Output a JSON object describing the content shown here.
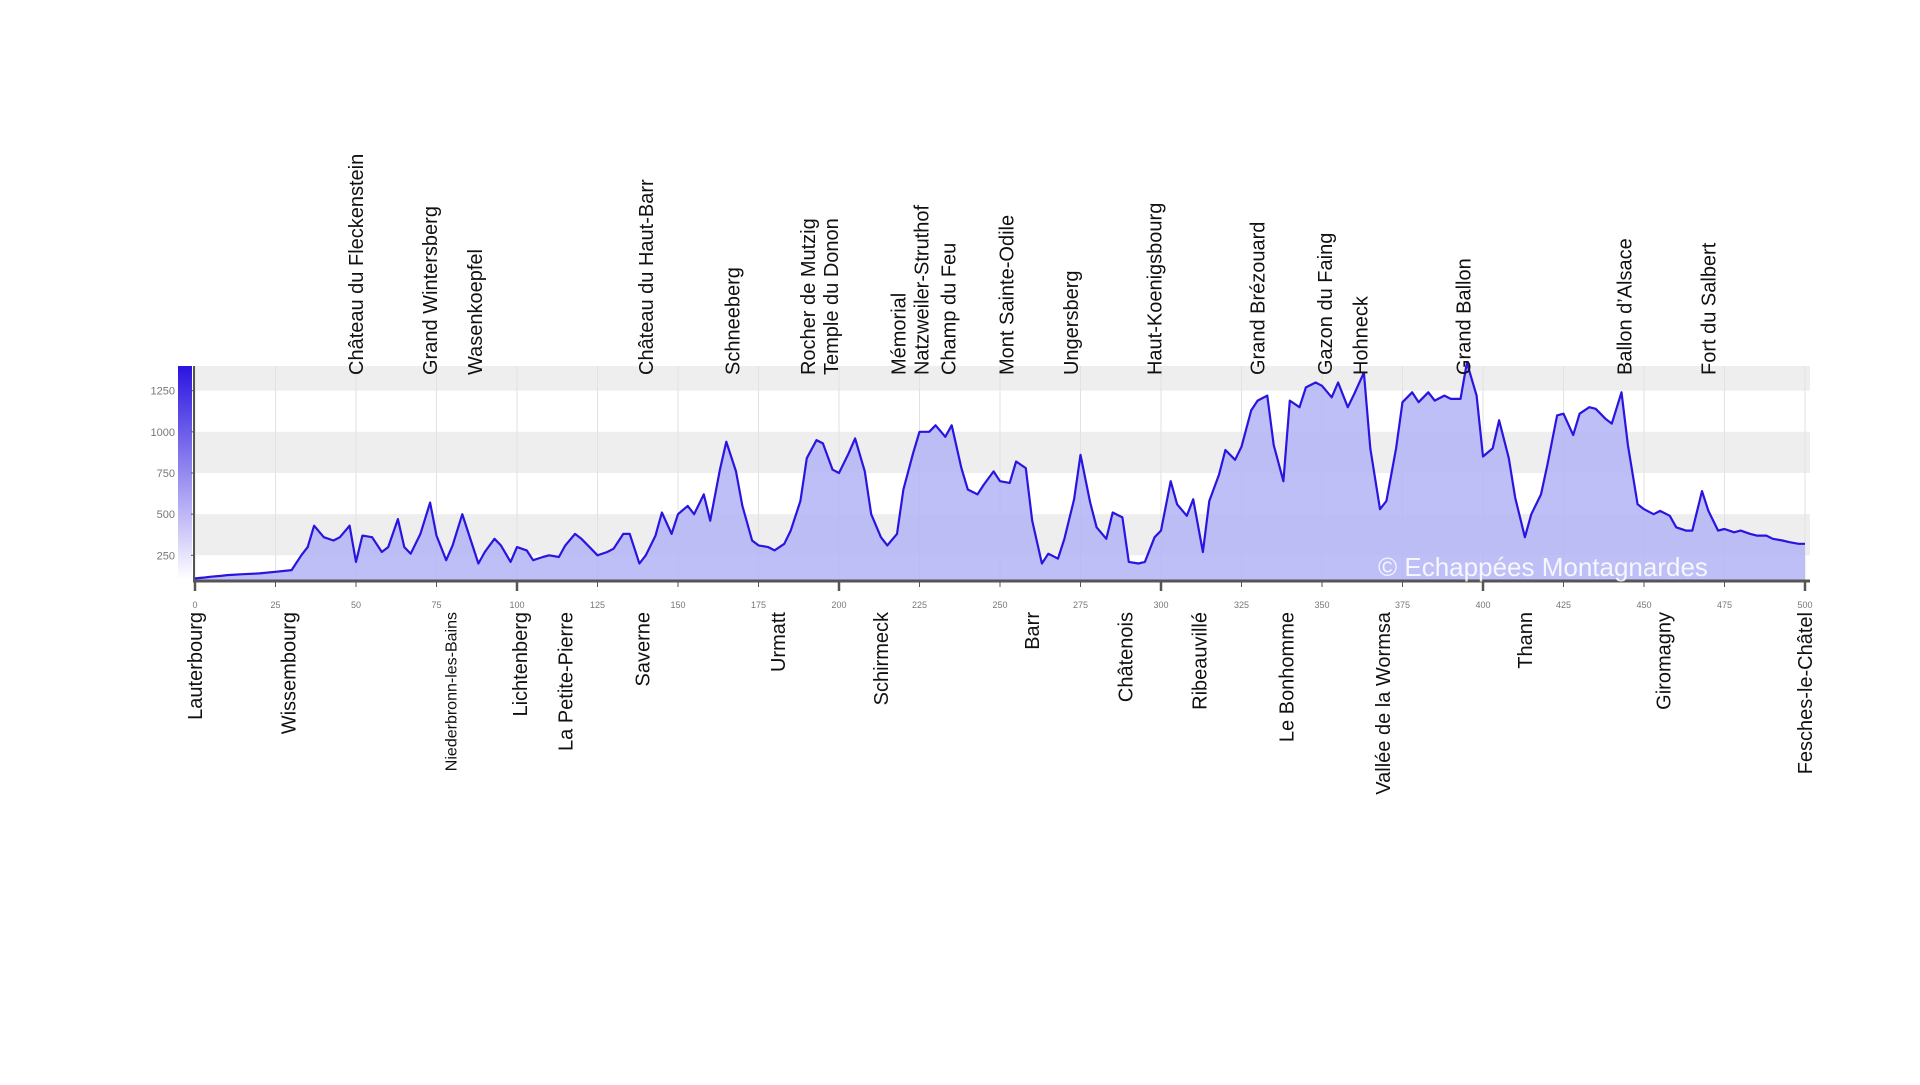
{
  "chart_data": {
    "type": "area",
    "title": "",
    "xlabel": "",
    "ylabel": "",
    "xlim": [
      0,
      500
    ],
    "ylim": [
      100,
      1400
    ],
    "x_ticks": [
      0,
      25,
      50,
      75,
      100,
      125,
      150,
      175,
      200,
      225,
      250,
      275,
      300,
      325,
      350,
      375,
      400,
      425,
      450,
      475,
      500
    ],
    "x_major_ticks": [
      0,
      100,
      200,
      300,
      400,
      500
    ],
    "y_ticks": [
      250,
      500,
      750,
      1000,
      1250
    ],
    "grid": true,
    "y_bands": [
      [
        250,
        500
      ],
      [
        750,
        1000
      ],
      [
        1250,
        1400
      ]
    ],
    "colors": {
      "line": "#2a14e0",
      "fill": "#b4b4f7",
      "band": "#eeeeee",
      "axis": "#555555",
      "gauge_top": "#2a14e0",
      "gauge_bottom": "#ffffff"
    },
    "series": [
      {
        "x": [
          0,
          3,
          5,
          8,
          10,
          15,
          20,
          25,
          30,
          33,
          35,
          37,
          40,
          43,
          45,
          48,
          50,
          52,
          55,
          58,
          60,
          63,
          65,
          67,
          70,
          73,
          75,
          78,
          80,
          83,
          85,
          88,
          90,
          93,
          95,
          98,
          100,
          103,
          105,
          108,
          110,
          113,
          115,
          118,
          120,
          123,
          125,
          128,
          130,
          133,
          135,
          138,
          140,
          143,
          145,
          148,
          150,
          153,
          155,
          158,
          160,
          163,
          165,
          168,
          170,
          173,
          175,
          178,
          180,
          183,
          185,
          188,
          190,
          193,
          195,
          198,
          200,
          203,
          205,
          208,
          210,
          213,
          215,
          218,
          220,
          223,
          225,
          228,
          230,
          233,
          235,
          238,
          240,
          243,
          245,
          248,
          250,
          253,
          255,
          258,
          260,
          263,
          265,
          268,
          270,
          273,
          275,
          278,
          280,
          283,
          285,
          288,
          290,
          293,
          295,
          298,
          300,
          303,
          305,
          308,
          310,
          313,
          315,
          318,
          320,
          323,
          325,
          328,
          330,
          333,
          335,
          338,
          340,
          343,
          345,
          348,
          350,
          353,
          355,
          358,
          360,
          363,
          365,
          368,
          370,
          373,
          375,
          378,
          380,
          383,
          385,
          388,
          390,
          393,
          395,
          398,
          400,
          403,
          405,
          408,
          410,
          413,
          415,
          418,
          420,
          423,
          425,
          428,
          430,
          433,
          435,
          438,
          440,
          443,
          445,
          448,
          450,
          453,
          455,
          458,
          460,
          463,
          465,
          468,
          470,
          473,
          475,
          478,
          480,
          483,
          485,
          488,
          490,
          493,
          495,
          498,
          500
        ],
        "y": [
          110,
          115,
          120,
          125,
          130,
          135,
          140,
          150,
          160,
          250,
          300,
          430,
          360,
          340,
          360,
          430,
          210,
          370,
          360,
          270,
          300,
          470,
          300,
          260,
          380,
          570,
          370,
          220,
          310,
          500,
          380,
          200,
          270,
          350,
          310,
          210,
          300,
          280,
          220,
          240,
          250,
          240,
          310,
          380,
          350,
          290,
          250,
          270,
          290,
          380,
          380,
          200,
          250,
          370,
          510,
          380,
          500,
          550,
          500,
          620,
          460,
          770,
          940,
          760,
          550,
          340,
          310,
          300,
          280,
          320,
          400,
          580,
          840,
          950,
          930,
          770,
          750,
          870,
          960,
          760,
          500,
          360,
          310,
          380,
          650,
          870,
          1000,
          1000,
          1040,
          970,
          1040,
          780,
          650,
          620,
          680,
          760,
          700,
          690,
          820,
          780,
          460,
          200,
          260,
          230,
          350,
          590,
          860,
          570,
          420,
          350,
          510,
          480,
          210,
          200,
          210,
          360,
          400,
          700,
          560,
          490,
          590,
          270,
          580,
          740,
          890,
          830,
          910,
          1130,
          1190,
          1220,
          920,
          700,
          1190,
          1150,
          1270,
          1300,
          1280,
          1210,
          1300,
          1150,
          1230,
          1360,
          900,
          530,
          580,
          900,
          1180,
          1240,
          1180,
          1240,
          1190,
          1220,
          1200,
          1200,
          1420,
          1220,
          850,
          900,
          1070,
          840,
          600,
          360,
          500,
          620,
          800,
          1100,
          1110,
          980,
          1110,
          1150,
          1140,
          1080,
          1050,
          1240,
          920,
          560,
          530,
          500,
          520,
          490,
          420,
          400,
          400,
          640,
          520,
          400,
          410,
          390,
          400,
          380,
          370,
          370,
          350,
          340,
          330,
          320,
          320
        ]
      }
    ],
    "summits": [
      {
        "label": "Château du Fleckenstein",
        "x": 50,
        "lines": [
          "Château du Fleckenstein"
        ]
      },
      {
        "label": "Grand Wintersberg",
        "x": 73,
        "lines": [
          "Grand Wintersberg"
        ]
      },
      {
        "label": "Wasenkoepfel",
        "x": 87,
        "lines": [
          "Wasenkoepfel"
        ]
      },
      {
        "label": "Château du Haut-Barr",
        "x": 140,
        "lines": [
          "Château du Haut-Barr"
        ]
      },
      {
        "label": "Schneeberg",
        "x": 167,
        "lines": [
          "Schneeberg"
        ]
      },
      {
        "label": "Rocher de Mutzig Temple du Donon",
        "x": 194,
        "lines": [
          "Rocher de Mutzig",
          "Temple du  Donon"
        ]
      },
      {
        "label": "Mémorial Natzweiler-Struthof",
        "x": 222,
        "lines": [
          "Mémorial",
          "Natzweiler-Struthof"
        ]
      },
      {
        "label": "Champ du Feu",
        "x": 234,
        "lines": [
          "Champ du Feu"
        ]
      },
      {
        "label": "Mont Sainte-Odile",
        "x": 252,
        "lines": [
          "Mont Sainte-Odile"
        ]
      },
      {
        "label": "Ungersberg",
        "x": 272,
        "lines": [
          "Ungersberg"
        ]
      },
      {
        "label": "Haut-Koenigsbourg",
        "x": 298,
        "lines": [
          "Haut-Koenigsbourg"
        ]
      },
      {
        "label": "Grand Brézouard",
        "x": 330,
        "lines": [
          "Grand Brézouard"
        ]
      },
      {
        "label": "Gazon du Faing",
        "x": 351,
        "lines": [
          "Gazon du Faing"
        ]
      },
      {
        "label": "Hohneck",
        "x": 362,
        "lines": [
          "Hohneck"
        ]
      },
      {
        "label": "Grand Ballon",
        "x": 394,
        "lines": [
          "Grand Ballon"
        ]
      },
      {
        "label": "Ballon d’Alsace",
        "x": 444,
        "lines": [
          "Ballon d’Alsace"
        ]
      },
      {
        "label": "Fort du Salbert",
        "x": 470,
        "lines": [
          "Fort du Salbert"
        ]
      }
    ],
    "towns": [
      {
        "label": "Lauterbourg",
        "x": 0,
        "small": false
      },
      {
        "label": "Wissembourg",
        "x": 29,
        "small": false
      },
      {
        "label": "Niederbronn-les-Bains",
        "x": 79,
        "small": true
      },
      {
        "label": "Lichtenberg",
        "x": 101,
        "small": false
      },
      {
        "label": "La Petite-Pierre",
        "x": 115,
        "small": false
      },
      {
        "label": "Saverne",
        "x": 139,
        "small": false
      },
      {
        "label": "Urmatt",
        "x": 181,
        "small": false
      },
      {
        "label": "Schirmeck",
        "x": 213,
        "small": false
      },
      {
        "label": "Barr",
        "x": 260,
        "small": false
      },
      {
        "label": "Châtenois",
        "x": 289,
        "small": false
      },
      {
        "label": "Ribeauvillé",
        "x": 312,
        "small": false
      },
      {
        "label": "Le Bonhomme",
        "x": 339,
        "small": false
      },
      {
        "label": "Vallée de la Wormsa",
        "x": 369,
        "small": false
      },
      {
        "label": "Thann",
        "x": 413,
        "small": false
      },
      {
        "label": "Giromagny",
        "x": 456,
        "small": false
      },
      {
        "label": "Fesches-le-Châtel",
        "x": 500,
        "small": false
      }
    ],
    "watermark": "© Echappées Montagnardes"
  }
}
